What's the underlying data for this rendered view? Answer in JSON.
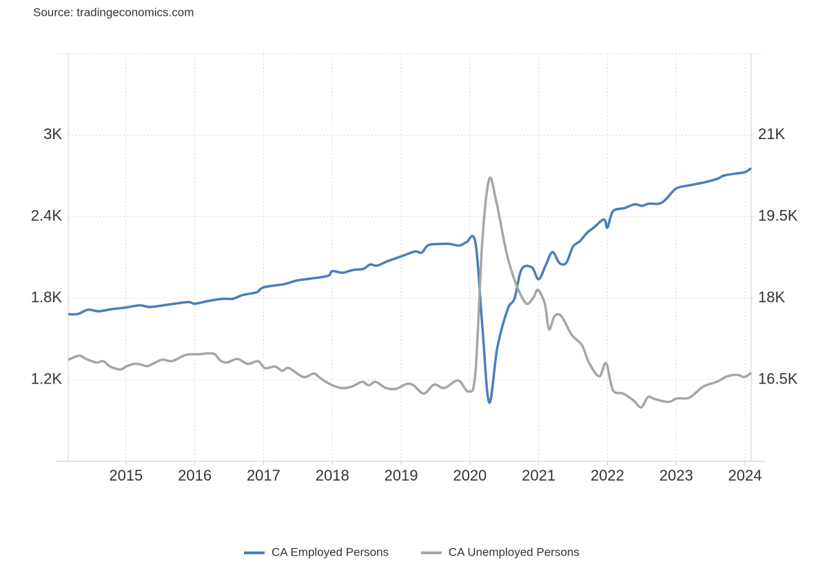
{
  "chart_data": {
    "type": "line",
    "source": "Source: tradingeconomics.com",
    "xlim": [
      2014.16,
      2024.09
    ],
    "xticks": [
      2015,
      2016,
      2017,
      2018,
      2019,
      2020,
      2021,
      2022,
      2023,
      2024
    ],
    "ylim": [
      600,
      3600
    ],
    "yticks": [
      {
        "value": 1200,
        "label": "1.2K"
      },
      {
        "value": 1800,
        "label": "1.8K"
      },
      {
        "value": 2400,
        "label": "2.4K"
      },
      {
        "value": 3000,
        "label": "3K"
      }
    ],
    "y2lim": [
      15000,
      22500
    ],
    "y2ticks": [
      {
        "value": 16500,
        "label": "16.5K"
      },
      {
        "value": 18000,
        "label": "18K"
      },
      {
        "value": 19500,
        "label": "19.5K"
      },
      {
        "value": 21000,
        "label": "21K"
      }
    ],
    "grid": true,
    "legend": "bottom",
    "series": [
      {
        "name": "CA Employed Persons",
        "color": "#4a7ebb",
        "axis": "y2",
        "x": [
          2014.16,
          2014.3,
          2014.45,
          2014.6,
          2014.8,
          2015.0,
          2015.2,
          2015.35,
          2015.6,
          2015.9,
          2016.0,
          2016.2,
          2016.4,
          2016.55,
          2016.7,
          2016.9,
          2017.0,
          2017.3,
          2017.5,
          2017.8,
          2017.95,
          2018.0,
          2018.15,
          2018.3,
          2018.45,
          2018.55,
          2018.65,
          2018.8,
          2019.0,
          2019.2,
          2019.3,
          2019.4,
          2019.6,
          2019.7,
          2019.85,
          2019.95,
          2020.08,
          2020.18,
          2020.28,
          2020.4,
          2020.55,
          2020.65,
          2020.75,
          2020.9,
          2021.0,
          2021.1,
          2021.2,
          2021.3,
          2021.4,
          2021.5,
          2021.6,
          2021.7,
          2021.8,
          2021.95,
          2022.0,
          2022.08,
          2022.25,
          2022.4,
          2022.5,
          2022.6,
          2022.75,
          2022.85,
          2023.0,
          2023.2,
          2023.4,
          2023.6,
          2023.7,
          2023.9,
          2024.0,
          2024.09
        ],
        "values": [
          17707,
          17710,
          17790,
          17760,
          17800,
          17830,
          17870,
          17840,
          17880,
          17930,
          17900,
          17950,
          17990,
          17990,
          18060,
          18110,
          18200,
          18260,
          18330,
          18380,
          18420,
          18500,
          18470,
          18520,
          18540,
          18620,
          18600,
          18680,
          18770,
          18860,
          18840,
          18980,
          19000,
          19000,
          18970,
          19030,
          19030,
          17500,
          16081,
          17100,
          17800,
          18000,
          18530,
          18570,
          18350,
          18600,
          18850,
          18650,
          18650,
          18950,
          19050,
          19200,
          19300,
          19450,
          19300,
          19600,
          19660,
          19730,
          19700,
          19740,
          19740,
          19820,
          20020,
          20080,
          20130,
          20200,
          20260,
          20300,
          20320,
          20390
        ]
      },
      {
        "name": "CA Unemployed Persons",
        "color": "#a6a6a6",
        "axis": "y",
        "x": [
          2014.16,
          2014.32,
          2014.42,
          2014.57,
          2014.67,
          2014.77,
          2014.92,
          2015.0,
          2015.12,
          2015.22,
          2015.32,
          2015.52,
          2015.67,
          2015.87,
          2016.07,
          2016.27,
          2016.37,
          2016.47,
          2016.62,
          2016.77,
          2016.92,
          2017.02,
          2017.17,
          2017.27,
          2017.37,
          2017.58,
          2017.73,
          2017.83,
          2017.98,
          2018.13,
          2018.28,
          2018.43,
          2018.53,
          2018.63,
          2018.78,
          2018.93,
          2019.08,
          2019.18,
          2019.33,
          2019.48,
          2019.63,
          2019.83,
          2019.98,
          2020.08,
          2020.18,
          2020.28,
          2020.38,
          2020.53,
          2020.63,
          2020.73,
          2020.83,
          2020.93,
          2020.99,
          2021.09,
          2021.15,
          2021.23,
          2021.33,
          2021.48,
          2021.63,
          2021.73,
          2021.88,
          2021.98,
          2022.08,
          2022.23,
          2022.38,
          2022.49,
          2022.59,
          2022.69,
          2022.89,
          2023.01,
          2023.19,
          2023.39,
          2023.59,
          2023.74,
          2023.89,
          2023.99,
          2024.09
        ],
        "values": [
          1347,
          1378,
          1353,
          1327,
          1337,
          1297,
          1276,
          1297,
          1317,
          1312,
          1302,
          1347,
          1337,
          1383,
          1388,
          1393,
          1342,
          1327,
          1353,
          1317,
          1337,
          1286,
          1297,
          1266,
          1286,
          1220,
          1246,
          1210,
          1164,
          1139,
          1149,
          1185,
          1159,
          1185,
          1139,
          1134,
          1169,
          1159,
          1098,
          1164,
          1139,
          1195,
          1114,
          1251,
          2217,
          2675,
          2522,
          2141,
          1963,
          1836,
          1759,
          1810,
          1861,
          1759,
          1571,
          1668,
          1668,
          1531,
          1454,
          1327,
          1225,
          1322,
          1124,
          1098,
          1047,
          997,
          1073,
          1058,
          1037,
          1063,
          1068,
          1149,
          1185,
          1225,
          1236,
          1220,
          1251
        ]
      }
    ]
  }
}
